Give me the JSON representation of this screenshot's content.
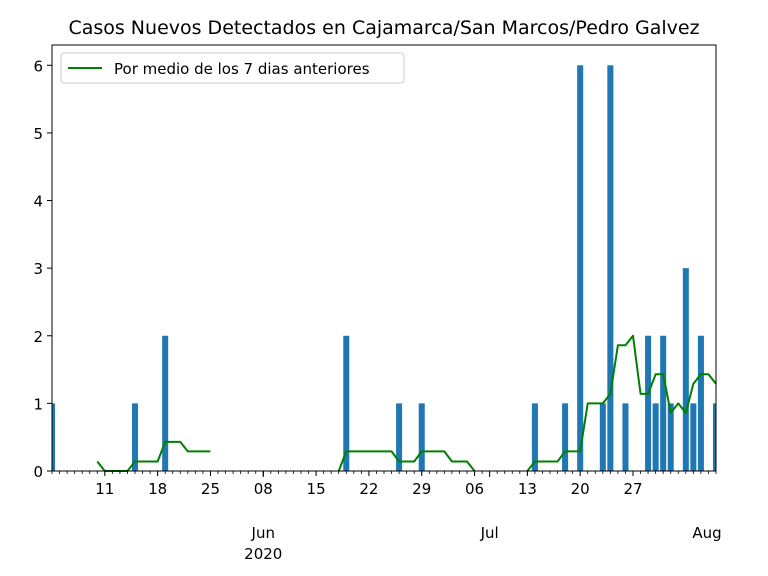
{
  "chart_data": {
    "type": "bar",
    "title": "Casos Nuevos Detectados en Cajamarca/San Marcos/Pedro Galvez",
    "xlabel": "",
    "ylabel": "",
    "x_range": [
      "2020-05-04",
      "2020-07-31"
    ],
    "ylim": [
      0,
      6.3
    ],
    "y_ticks": [
      0,
      1,
      2,
      3,
      4,
      5,
      6
    ],
    "x_minor_ticks": [
      "11",
      "18",
      "25",
      "08",
      "15",
      "22",
      "29",
      "06",
      "13",
      "20",
      "27"
    ],
    "x_major_ticks": [
      {
        "date": "2020-06-01",
        "label": "Jun",
        "sublabel": "2020"
      },
      {
        "date": "2020-07-01",
        "label": "Jul",
        "sublabel": ""
      },
      {
        "date": "2020-08-01",
        "label": "Aug",
        "sublabel": ""
      }
    ],
    "grid": false,
    "legend_position": "top-left",
    "series": [
      {
        "type": "bar",
        "color": "#1f77b4",
        "x": [
          "2020-05-04",
          "2020-05-15",
          "2020-05-19",
          "2020-06-12",
          "2020-06-19",
          "2020-06-22",
          "2020-07-07",
          "2020-07-11",
          "2020-07-13",
          "2020-07-16",
          "2020-07-17",
          "2020-07-19",
          "2020-07-22",
          "2020-07-23",
          "2020-07-24",
          "2020-07-25",
          "2020-07-27",
          "2020-07-28",
          "2020-07-29",
          "2020-07-31"
        ],
        "values": [
          1,
          1,
          2,
          2,
          1,
          1,
          1,
          1,
          6,
          1,
          6,
          1,
          2,
          1,
          2,
          1,
          3,
          1,
          2,
          1
        ]
      },
      {
        "type": "line",
        "name": "Por medio de los 7 dias anteriores",
        "color": "#008000",
        "x": [
          "2020-05-10",
          "2020-05-11",
          "2020-05-12",
          "2020-05-13",
          "2020-05-14",
          "2020-05-15",
          "2020-05-16",
          "2020-05-17",
          "2020-05-18",
          "2020-05-19",
          "2020-05-20",
          "2020-05-21",
          "2020-05-22",
          "2020-05-23",
          "2020-05-24",
          "2020-05-25",
          "2020-06-11",
          "2020-06-12",
          "2020-06-13",
          "2020-06-14",
          "2020-06-15",
          "2020-06-16",
          "2020-06-17",
          "2020-06-18",
          "2020-06-19",
          "2020-06-20",
          "2020-06-21",
          "2020-06-22",
          "2020-06-23",
          "2020-06-24",
          "2020-06-25",
          "2020-06-26",
          "2020-06-27",
          "2020-06-28",
          "2020-06-29",
          "2020-07-06",
          "2020-07-07",
          "2020-07-08",
          "2020-07-09",
          "2020-07-10",
          "2020-07-11",
          "2020-07-12",
          "2020-07-13",
          "2020-07-14",
          "2020-07-15",
          "2020-07-16",
          "2020-07-17",
          "2020-07-18",
          "2020-07-19",
          "2020-07-20",
          "2020-07-21",
          "2020-07-22",
          "2020-07-23",
          "2020-07-24",
          "2020-07-25",
          "2020-07-26",
          "2020-07-27",
          "2020-07-28",
          "2020-07-29",
          "2020-07-30",
          "2020-07-31"
        ],
        "values": [
          0.14,
          0,
          0,
          0,
          0,
          0.14,
          0.14,
          0.14,
          0.14,
          0.43,
          0.43,
          0.43,
          0.29,
          0.29,
          0.29,
          0.29,
          0,
          0.29,
          0.29,
          0.29,
          0.29,
          0.29,
          0.29,
          0.29,
          0.14,
          0.14,
          0.14,
          0.29,
          0.29,
          0.29,
          0.29,
          0.14,
          0.14,
          0.14,
          0,
          0,
          0.14,
          0.14,
          0.14,
          0.14,
          0.29,
          0.29,
          0.29,
          1,
          1,
          1,
          1.14,
          1.86,
          1.86,
          2,
          1.14,
          1.14,
          1.43,
          1.43,
          0.86,
          1,
          0.86,
          1.29,
          1.43,
          1.43,
          1.29
        ]
      }
    ]
  }
}
